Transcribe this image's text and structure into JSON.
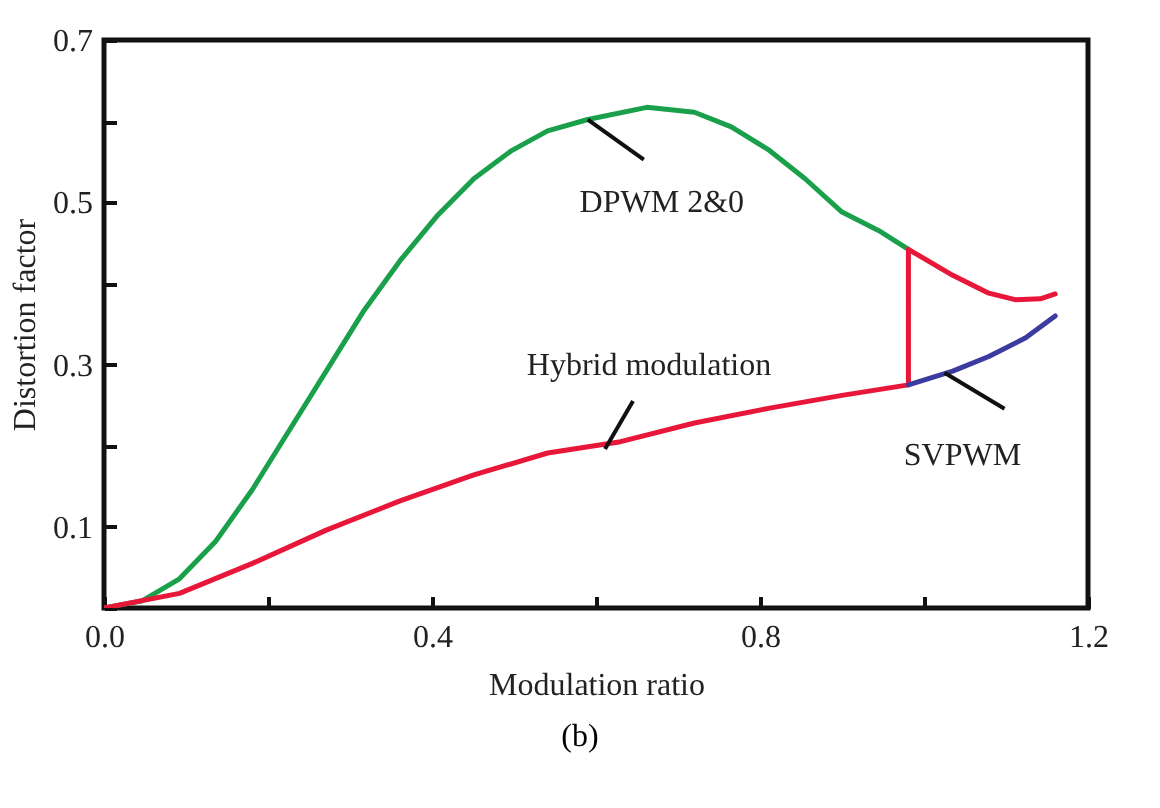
{
  "chart_data": {
    "type": "line",
    "xlabel": "Modulation ratio",
    "ylabel": "Distortion factor",
    "xlim": [
      0,
      1.2
    ],
    "ylim": [
      0,
      0.7
    ],
    "xticks": [
      {
        "value": 0,
        "label": "0.0"
      },
      {
        "value": 0.2,
        "label": null
      },
      0.4,
      {
        "value": 0.6,
        "label": null
      },
      0.8,
      {
        "value": 1.0,
        "label": null
      },
      1.2
    ],
    "yticks": [
      {
        "value": 0,
        "label": null
      },
      0.1,
      {
        "value": 0.2,
        "label": null
      },
      0.3,
      {
        "value": 0.4,
        "label": null
      },
      0.5,
      {
        "value": 0.6,
        "label": null
      },
      0.7
    ],
    "line_style": "solid",
    "series": [
      {
        "color": "#1aa04a",
        "x": [
          0,
          0.047,
          0.092,
          0.136,
          0.181,
          0.226,
          0.271,
          0.316,
          0.361,
          0.406,
          0.451,
          0.496,
          0.541,
          0.59,
          0.662,
          0.72,
          0.765,
          0.81,
          0.855,
          0.9,
          0.945,
          0.981
        ],
        "values": [
          0,
          0.009,
          0.036,
          0.082,
          0.146,
          0.219,
          0.292,
          0.365,
          0.428,
          0.483,
          0.529,
          0.563,
          0.588,
          0.602,
          0.617,
          0.611,
          0.593,
          0.565,
          0.529,
          0.488,
          0.465,
          0.442
        ]
      },
      {
        "color": "#e8173a",
        "x": [
          0,
          0.092,
          0.181,
          0.271,
          0.361,
          0.451,
          0.541,
          0.63,
          0.72,
          0.81,
          0.9,
          0.981,
          0.981,
          1.035,
          1.079,
          1.111,
          1.142,
          1.16
        ],
        "values": [
          0,
          0.018,
          0.055,
          0.096,
          0.132,
          0.164,
          0.191,
          0.205,
          0.228,
          0.246,
          0.262,
          0.275,
          0.442,
          0.41,
          0.388,
          0.38,
          0.381,
          0.387
        ]
      },
      {
        "color": "#3b3ba0",
        "x": [
          0.981,
          1.035,
          1.079,
          1.124,
          1.16
        ],
        "values": [
          0.275,
          0.292,
          0.31,
          0.333,
          0.36
        ]
      }
    ],
    "annotations": [
      {
        "text": "DPWM 2&0",
        "x": 0.59,
        "y": 0.602
      },
      {
        "text": "Hybrid modulation",
        "x": 0.611,
        "y": 0.196
      },
      {
        "text": "SVPWM",
        "x": 1.025,
        "y": 0.29
      },
      "(b)"
    ]
  }
}
